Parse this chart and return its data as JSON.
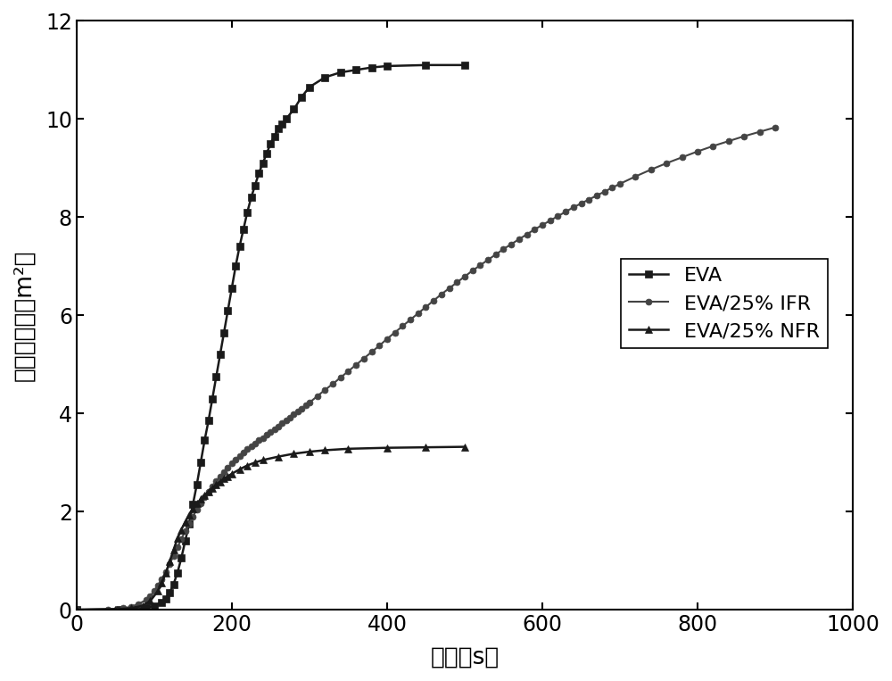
{
  "title": "",
  "xlabel": "时间（s）",
  "ylabel": "烟释放总量（m²）",
  "xlim": [
    0,
    1000
  ],
  "ylim": [
    0,
    12
  ],
  "xticks": [
    0,
    200,
    400,
    600,
    800,
    1000
  ],
  "yticks": [
    0,
    2,
    4,
    6,
    8,
    10,
    12
  ],
  "background_color": "#ffffff",
  "line_color": "#1a1a1a",
  "ifr_color": "#444444",
  "series": [
    {
      "label": "EVA",
      "marker": "s",
      "markersize": 6,
      "linewidth": 1.8,
      "x": [
        0,
        55,
        75,
        90,
        100,
        110,
        115,
        120,
        125,
        130,
        135,
        140,
        145,
        150,
        155,
        160,
        165,
        170,
        175,
        180,
        185,
        190,
        195,
        200,
        205,
        210,
        215,
        220,
        225,
        230,
        235,
        240,
        245,
        250,
        255,
        260,
        265,
        270,
        280,
        290,
        300,
        320,
        340,
        360,
        380,
        400,
        450,
        500
      ],
      "y": [
        0,
        0.01,
        0.02,
        0.04,
        0.08,
        0.15,
        0.22,
        0.35,
        0.52,
        0.75,
        1.05,
        1.4,
        1.75,
        2.15,
        2.55,
        3.0,
        3.45,
        3.85,
        4.3,
        4.75,
        5.2,
        5.65,
        6.1,
        6.55,
        7.0,
        7.4,
        7.75,
        8.1,
        8.4,
        8.65,
        8.9,
        9.1,
        9.3,
        9.5,
        9.65,
        9.8,
        9.9,
        10.0,
        10.2,
        10.45,
        10.65,
        10.85,
        10.95,
        11.0,
        11.05,
        11.08,
        11.1,
        11.1
      ]
    },
    {
      "label": "EVA/25% IFR",
      "marker": "o",
      "markersize": 5,
      "linewidth": 1.5,
      "x": [
        0,
        40,
        60,
        70,
        80,
        90,
        95,
        100,
        105,
        110,
        115,
        120,
        125,
        130,
        135,
        140,
        145,
        150,
        155,
        160,
        165,
        170,
        175,
        180,
        185,
        190,
        195,
        200,
        205,
        210,
        215,
        220,
        225,
        230,
        235,
        240,
        245,
        250,
        255,
        260,
        265,
        270,
        275,
        280,
        285,
        290,
        295,
        300,
        310,
        320,
        330,
        340,
        350,
        360,
        370,
        380,
        390,
        400,
        410,
        420,
        430,
        440,
        450,
        460,
        470,
        480,
        490,
        500,
        510,
        520,
        530,
        540,
        550,
        560,
        570,
        580,
        590,
        600,
        610,
        620,
        630,
        640,
        650,
        660,
        670,
        680,
        690,
        700,
        720,
        740,
        760,
        780,
        800,
        820,
        840,
        860,
        880,
        900
      ],
      "y": [
        0,
        0.01,
        0.03,
        0.06,
        0.12,
        0.2,
        0.28,
        0.38,
        0.5,
        0.63,
        0.77,
        0.93,
        1.1,
        1.27,
        1.44,
        1.6,
        1.75,
        1.9,
        2.04,
        2.17,
        2.29,
        2.41,
        2.52,
        2.62,
        2.72,
        2.81,
        2.9,
        2.98,
        3.06,
        3.13,
        3.2,
        3.27,
        3.33,
        3.39,
        3.45,
        3.5,
        3.56,
        3.62,
        3.68,
        3.74,
        3.8,
        3.86,
        3.92,
        3.98,
        4.04,
        4.1,
        4.16,
        4.22,
        4.35,
        4.48,
        4.6,
        4.73,
        4.86,
        4.99,
        5.12,
        5.25,
        5.38,
        5.52,
        5.65,
        5.78,
        5.91,
        6.04,
        6.17,
        6.3,
        6.43,
        6.55,
        6.67,
        6.79,
        6.91,
        7.02,
        7.13,
        7.24,
        7.35,
        7.45,
        7.55,
        7.65,
        7.75,
        7.84,
        7.93,
        8.02,
        8.11,
        8.2,
        8.28,
        8.36,
        8.44,
        8.52,
        8.6,
        8.68,
        8.83,
        8.97,
        9.1,
        9.22,
        9.34,
        9.45,
        9.55,
        9.65,
        9.74,
        9.83
      ]
    },
    {
      "label": "EVA/25% NFR",
      "marker": "^",
      "markersize": 6,
      "linewidth": 1.8,
      "x": [
        0,
        50,
        70,
        85,
        95,
        105,
        110,
        115,
        120,
        125,
        130,
        135,
        140,
        145,
        150,
        155,
        160,
        165,
        170,
        175,
        180,
        185,
        190,
        195,
        200,
        210,
        220,
        230,
        240,
        260,
        280,
        300,
        320,
        350,
        400,
        450,
        500
      ],
      "y": [
        0,
        0.01,
        0.03,
        0.08,
        0.18,
        0.38,
        0.55,
        0.75,
        0.98,
        1.22,
        1.45,
        1.63,
        1.79,
        1.93,
        2.05,
        2.16,
        2.25,
        2.33,
        2.41,
        2.48,
        2.55,
        2.61,
        2.67,
        2.72,
        2.77,
        2.86,
        2.94,
        3.0,
        3.05,
        3.12,
        3.18,
        3.22,
        3.25,
        3.28,
        3.3,
        3.31,
        3.32
      ]
    }
  ],
  "legend_fontsize": 16,
  "label_fontsize": 19,
  "tick_fontsize": 17
}
